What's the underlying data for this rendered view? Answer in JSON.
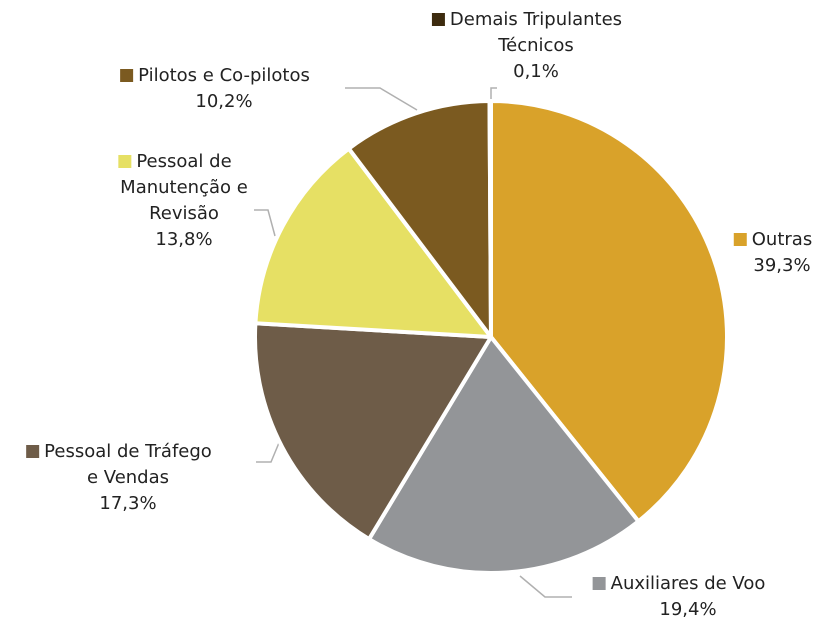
{
  "chart_data": {
    "type": "pie",
    "categories": [
      "Outras",
      "Auxiliares de Voo",
      "Pessoal de Tráfego e Vendas",
      "Pessoal de Manutenção e Revisão",
      "Pilotos e Co-pilotos",
      "Demais Tripulantes Técnicos"
    ],
    "values": [
      39.3,
      19.4,
      17.3,
      13.8,
      10.2,
      0.1
    ],
    "value_labels": [
      "39,3%",
      "19,4%",
      "17,3%",
      "13,8%",
      "10,2%",
      "0,1%"
    ],
    "colors": [
      "#d9a22a",
      "#939598",
      "#6e5c48",
      "#e6e064",
      "#7b5a20",
      "#3d2b0f"
    ]
  }
}
